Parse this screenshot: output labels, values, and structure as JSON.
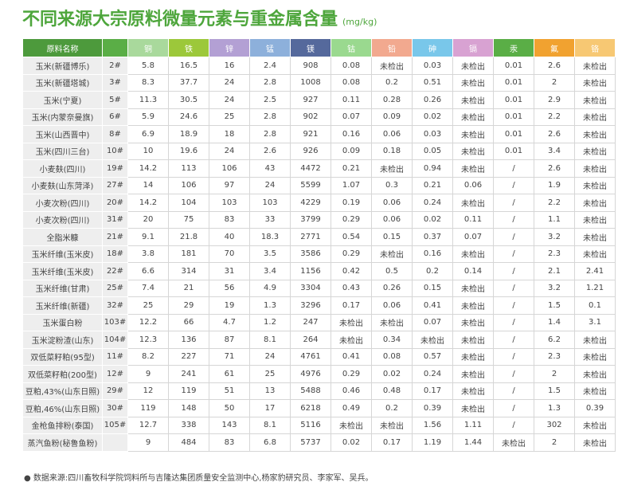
{
  "header": {
    "title": "不同来源大宗原料微量元素与重金属含量",
    "unit": "(mg/kg)"
  },
  "table": {
    "columns": [
      "原料名称",
      null,
      "铜",
      "铁",
      "锌",
      "锰",
      "镁",
      "钴",
      "铅",
      "砷",
      "镉",
      "汞",
      "氟",
      "铬"
    ],
    "column_colors": [
      "#4d9a3c",
      "#5aae46",
      "#a9d99c",
      "#9cc83a",
      "#b3a0d4",
      "#8db0db",
      "#55699c",
      "#9ad98f",
      "#f2a98f",
      "#79c7ea",
      "#d8a2d2",
      "#5aae46",
      "#f1a230",
      "#f7c873"
    ],
    "rows": [
      [
        "玉米(新疆博乐)",
        "2#",
        5.8,
        16.5,
        16,
        2.4,
        908,
        0.08,
        "未检出",
        0.03,
        "未检出",
        0.01,
        2.6,
        "未检出"
      ],
      [
        "玉米(新疆塔城)",
        "3#",
        8.3,
        37.7,
        24,
        2.8,
        1008,
        0.08,
        0.2,
        0.51,
        "未检出",
        0.01,
        2,
        "未检出"
      ],
      [
        "玉米(宁夏)",
        "5#",
        11.3,
        30.5,
        24,
        2.5,
        927,
        0.11,
        0.28,
        0.26,
        "未检出",
        0.01,
        2.9,
        "未检出"
      ],
      [
        "玉米(内蒙奈曼旗)",
        "6#",
        5.9,
        24.6,
        25,
        2.8,
        902,
        0.07,
        0.09,
        0.02,
        "未检出",
        0.01,
        2.2,
        "未检出"
      ],
      [
        "玉米(山西晋中)",
        "8#",
        6.9,
        18.9,
        18,
        2.8,
        921,
        0.16,
        0.06,
        0.03,
        "未检出",
        0.01,
        2.6,
        "未检出"
      ],
      [
        "玉米(四川三台)",
        "10#",
        10,
        19.6,
        24,
        2.6,
        926,
        0.09,
        0.18,
        0.05,
        "未检出",
        0.01,
        3.4,
        "未检出"
      ],
      [
        "小麦麸(四川)",
        "19#",
        14.2,
        113,
        106,
        43,
        4472,
        0.21,
        "未检出",
        0.94,
        "未检出",
        "/",
        2.6,
        "未检出"
      ],
      [
        "小麦麸(山东菏泽)",
        "27#",
        14,
        106,
        97,
        24,
        5599,
        1.07,
        0.3,
        0.21,
        0.06,
        "/",
        1.9,
        "未检出"
      ],
      [
        "小麦次粉(四川)",
        "20#",
        14.2,
        104,
        103,
        103,
        4229,
        0.19,
        0.06,
        0.24,
        "未检出",
        "/",
        2.2,
        "未检出"
      ],
      [
        "小麦次粉(四川)",
        "31#",
        20,
        75,
        83,
        33,
        3799,
        0.29,
        0.06,
        0.02,
        0.11,
        "/",
        1.1,
        "未检出"
      ],
      [
        "全脂米糠",
        "21#",
        9.1,
        21.8,
        40,
        18.3,
        2771,
        0.54,
        0.15,
        0.37,
        0.07,
        "/",
        3.2,
        "未检出"
      ],
      [
        "玉米纤维(玉米皮)",
        "18#",
        3.8,
        181,
        70,
        3.5,
        3586,
        0.29,
        "未检出",
        0.16,
        "未检出",
        "/",
        2.3,
        "未检出"
      ],
      [
        "玉米纤维(玉米皮)",
        "22#",
        6.6,
        314,
        31,
        3.4,
        1156,
        0.42,
        0.5,
        0.2,
        0.14,
        "/",
        2.1,
        2.41
      ],
      [
        "玉米纤维(甘肃)",
        "25#",
        7.4,
        21,
        56,
        4.9,
        3304,
        0.43,
        0.26,
        0.15,
        "未检出",
        "/",
        3.2,
        1.21
      ],
      [
        "玉米纤维(新疆)",
        "32#",
        25,
        29,
        19,
        1.3,
        3296,
        0.17,
        0.06,
        0.41,
        "未检出",
        "/",
        1.5,
        0.1
      ],
      [
        "玉米蛋白粉",
        "103#",
        12.2,
        66,
        4.7,
        1.2,
        247,
        "未检出",
        "未检出",
        0.07,
        "未检出",
        "/",
        1.4,
        3.1
      ],
      [
        "玉米淀粉渣(山东)",
        "104#",
        12.3,
        136,
        87,
        8.1,
        264,
        "未检出",
        0.34,
        "未检出",
        "未检出",
        "/",
        6.2,
        "未检出"
      ],
      [
        "双低菜籽粕(95型)",
        "11#",
        8.2,
        227,
        71,
        24,
        4761,
        0.41,
        0.08,
        0.57,
        "未检出",
        "/",
        2.3,
        "未检出"
      ],
      [
        "双低菜籽粕(200型)",
        "12#",
        9,
        241,
        61,
        25,
        4976,
        0.29,
        0.02,
        0.24,
        "未检出",
        "/",
        2,
        "未检出"
      ],
      [
        "豆粕,43%(山东日照)",
        "29#",
        12,
        119,
        51,
        13,
        5488,
        0.46,
        0.48,
        0.17,
        "未检出",
        "/",
        1.5,
        "未检出"
      ],
      [
        "豆粕,46%(山东日照)",
        "30#",
        119,
        148,
        50,
        17,
        6218,
        0.49,
        0.2,
        0.39,
        "未检出",
        "/",
        1.3,
        0.39
      ],
      [
        "金枪鱼排粉(泰国)",
        "105#",
        12.7,
        338,
        143,
        8.1,
        5116,
        "未检出",
        "未检出",
        1.56,
        1.11,
        "/",
        302,
        "未检出"
      ],
      [
        "蒸汽鱼粉(秘鲁鱼粉)",
        null,
        9,
        484,
        83,
        6.8,
        5737,
        0.02,
        0.17,
        1.19,
        1.44,
        "未检出",
        2,
        "未检出"
      ]
    ]
  },
  "footer": {
    "source": "数据来源:四川畜牧科学院饲料所与吉隆达集团质量安全监测中心,杨家豹研究员、李家军、吴兵。"
  }
}
